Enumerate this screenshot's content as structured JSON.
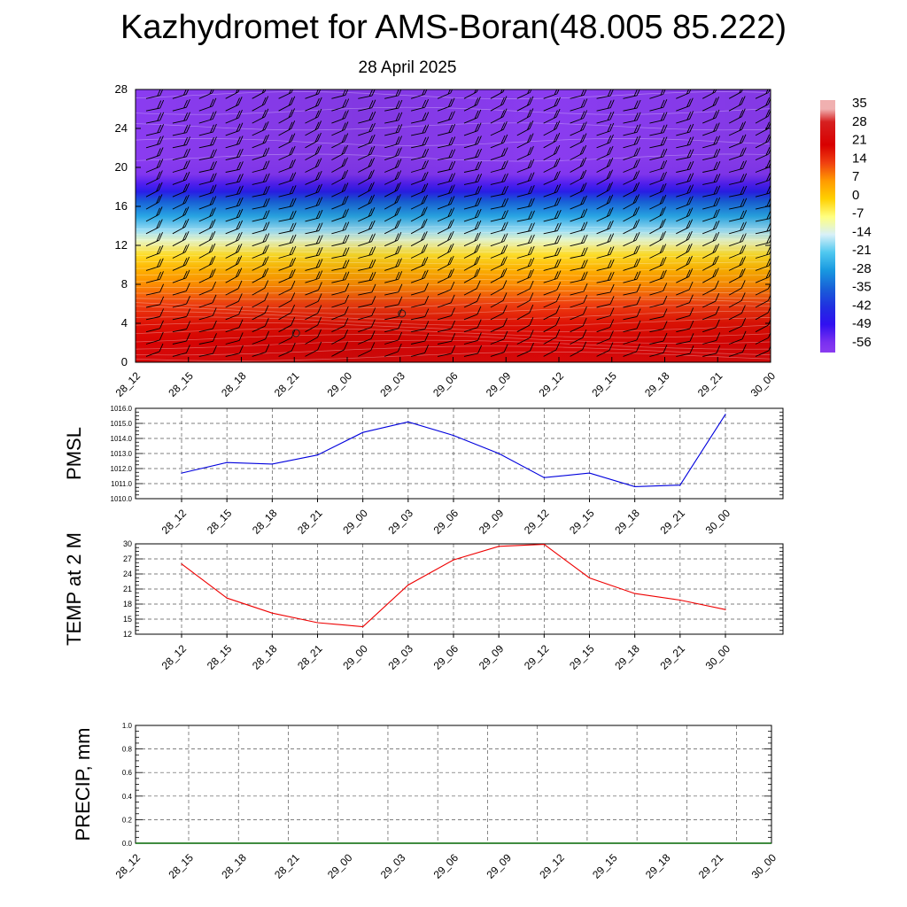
{
  "header": {
    "title": "Kazhydromet for AMS-Boran(48.005 85.222)",
    "date": "28 April 2025"
  },
  "chart_data": [
    {
      "type": "heatmap",
      "title": "",
      "x_labels": [
        "28_12",
        "28_15",
        "28_18",
        "28_21",
        "29_00",
        "29_03",
        "29_06",
        "29_09",
        "29_12",
        "29_15",
        "29_18",
        "29_21",
        "30_00"
      ],
      "y_ticks": [
        0,
        4,
        8,
        12,
        16,
        20,
        24,
        28
      ],
      "ylim": [
        0,
        28
      ],
      "colorbar": {
        "labels": [
          "35",
          "28",
          "21",
          "14",
          "7",
          "0",
          "-7",
          "-14",
          "-21",
          "-28",
          "-35",
          "-42",
          "-49",
          "-56"
        ],
        "stops": [
          {
            "v": 35,
            "c": "#f0b0b0"
          },
          {
            "v": 30,
            "c": "#d62020"
          },
          {
            "v": 21,
            "c": "#d80000"
          },
          {
            "v": 14,
            "c": "#f04010"
          },
          {
            "v": 7,
            "c": "#ff9a00"
          },
          {
            "v": 0,
            "c": "#ffd000"
          },
          {
            "v": -7,
            "c": "#ffff80"
          },
          {
            "v": -14,
            "c": "#d8f0f8"
          },
          {
            "v": -21,
            "c": "#4fc8f0"
          },
          {
            "v": -28,
            "c": "#1898e0"
          },
          {
            "v": -35,
            "c": "#1860d8"
          },
          {
            "v": -42,
            "c": "#2030e0"
          },
          {
            "v": -49,
            "c": "#3010f0"
          },
          {
            "v": -56,
            "c": "#7a30f0"
          },
          {
            "v": -60,
            "c": "#8a3cf0"
          }
        ]
      },
      "markers": [
        {
          "x": "28_21",
          "y": 3
        },
        {
          "x": "29_03",
          "y": 5
        }
      ],
      "wind_barbs": true
    },
    {
      "type": "line",
      "ylabel": "PMSL",
      "x": [
        "28_12",
        "28_15",
        "28_18",
        "28_21",
        "29_00",
        "29_03",
        "29_06",
        "29_09",
        "29_12",
        "29_15",
        "29_18",
        "29_21",
        "30_00"
      ],
      "values": [
        1011.7,
        1012.4,
        1012.3,
        1012.9,
        1014.4,
        1015.1,
        1014.2,
        1013.0,
        1011.4,
        1011.7,
        1010.8,
        1010.9,
        1015.6
      ],
      "ylim": [
        1010.0,
        1016.0
      ],
      "y_ticks": [
        "1010.0",
        "1011.0",
        "1012.0",
        "1013.0",
        "1014.0",
        "1015.0",
        "1016.0"
      ],
      "color": "#0000dd",
      "grid": true
    },
    {
      "type": "line",
      "ylabel": "TEMP at 2 M",
      "x": [
        "28_12",
        "28_15",
        "28_18",
        "28_21",
        "29_00",
        "29_03",
        "29_06",
        "29_09",
        "29_12",
        "29_15",
        "29_18",
        "29_21",
        "30_00"
      ],
      "values": [
        26.0,
        19.2,
        16.2,
        14.3,
        13.5,
        21.8,
        26.8,
        29.5,
        29.9,
        23.2,
        20.1,
        18.8,
        16.9
      ],
      "ylim": [
        12,
        30
      ],
      "y_ticks": [
        "12",
        "15",
        "18",
        "21",
        "24",
        "27",
        "30"
      ],
      "color": "#ee0000",
      "grid": true
    },
    {
      "type": "line",
      "ylabel": "PRECIP, mm",
      "x": [
        "28_12",
        "28_15",
        "28_18",
        "28_21",
        "29_00",
        "29_03",
        "29_06",
        "29_09",
        "29_12",
        "29_15",
        "29_18",
        "29_21",
        "30_00"
      ],
      "values": [
        0,
        0,
        0,
        0,
        0,
        0,
        0,
        0,
        0,
        0,
        0,
        0,
        0
      ],
      "ylim": [
        0,
        1
      ],
      "y_ticks": [
        "0.0",
        "0.2",
        "0.4",
        "0.6",
        "0.8",
        "1.0"
      ],
      "color": "#006600",
      "grid": true
    }
  ]
}
